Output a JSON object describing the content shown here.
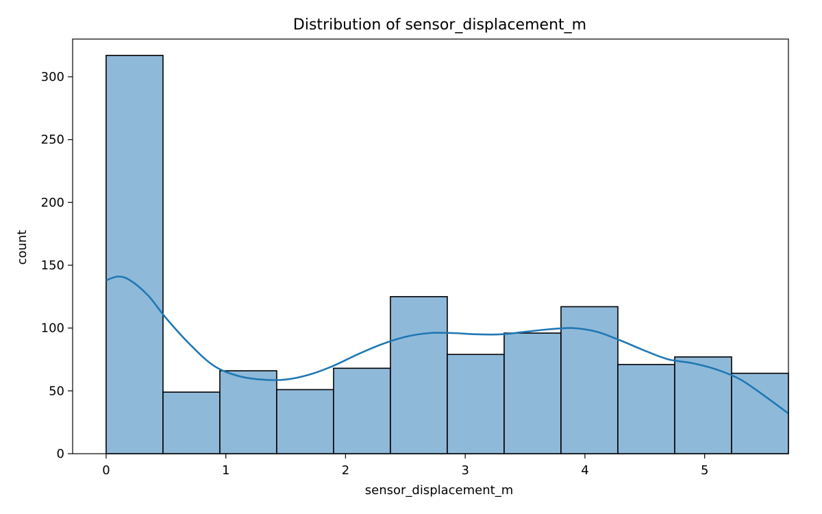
{
  "chart_data": {
    "type": "bar",
    "subtype": "histogram",
    "title": "Distribution of sensor_displacement_m",
    "xlabel": "sensor_displacement_m",
    "ylabel": "count",
    "xlim": [
      -0.28,
      5.7
    ],
    "ylim": [
      0,
      330
    ],
    "x_ticks": [
      0,
      1,
      2,
      3,
      4,
      5
    ],
    "y_ticks": [
      0,
      50,
      100,
      150,
      200,
      250,
      300
    ],
    "bins": [
      {
        "start": 0.0,
        "end": 0.475,
        "count": 317
      },
      {
        "start": 0.475,
        "end": 0.95,
        "count": 49
      },
      {
        "start": 0.95,
        "end": 1.425,
        "count": 66
      },
      {
        "start": 1.425,
        "end": 1.9,
        "count": 51
      },
      {
        "start": 1.9,
        "end": 2.375,
        "count": 68
      },
      {
        "start": 2.375,
        "end": 2.85,
        "count": 125
      },
      {
        "start": 2.85,
        "end": 3.325,
        "count": 79
      },
      {
        "start": 3.325,
        "end": 3.8,
        "count": 96
      },
      {
        "start": 3.8,
        "end": 4.275,
        "count": 117
      },
      {
        "start": 4.275,
        "end": 4.75,
        "count": 71
      },
      {
        "start": 4.75,
        "end": 5.225,
        "count": 77
      },
      {
        "start": 5.225,
        "end": 5.7,
        "count": 64
      }
    ],
    "kde": {
      "x": [
        0.0,
        0.1,
        0.2,
        0.35,
        0.5,
        0.7,
        0.9,
        1.1,
        1.3,
        1.5,
        1.7,
        1.9,
        2.1,
        2.3,
        2.5,
        2.7,
        2.9,
        3.1,
        3.3,
        3.5,
        3.7,
        3.9,
        4.1,
        4.3,
        4.5,
        4.7,
        4.9,
        5.1,
        5.3,
        5.5,
        5.7
      ],
      "y": [
        138,
        141,
        138,
        126,
        108,
        87,
        70,
        62,
        59,
        59,
        63,
        70,
        79,
        87,
        93,
        96,
        96,
        95,
        95,
        97,
        99,
        100,
        97,
        90,
        82,
        75,
        72,
        67,
        59,
        46,
        32
      ]
    },
    "grid": false,
    "legend": "none",
    "colors": {
      "bar_fill": "#8fb9d9",
      "bar_edge": "#000000",
      "kde_line": "#1f77b4",
      "axis": "#000000"
    }
  }
}
